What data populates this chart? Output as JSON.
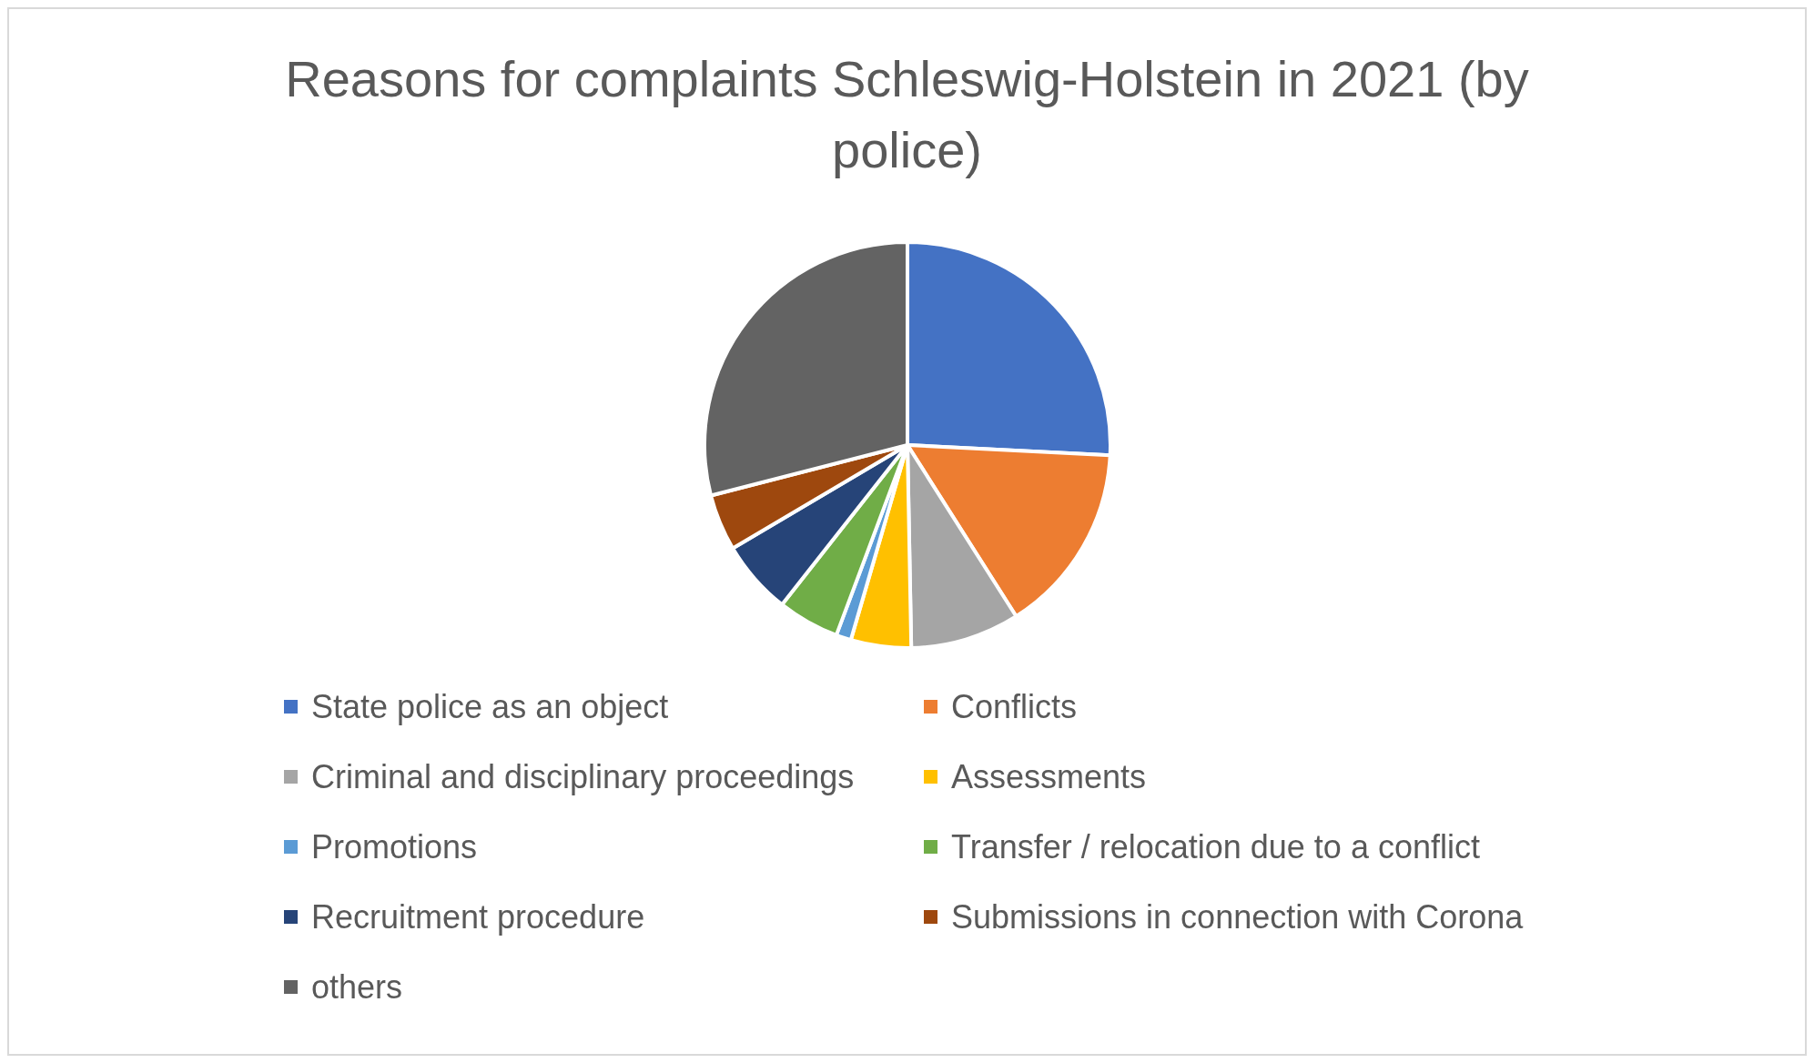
{
  "chart_data": {
    "type": "pie",
    "title": "Reasons for complaints Schleswig-Holstein in 2021 (by police)",
    "categories": [
      "State police as an object",
      "Conflicts",
      "Criminal and disciplinary proceedings",
      "Assessments",
      "Promotions",
      "Transfer / relocation due to a conflict",
      "Recruitment procedure",
      "Submissions in connection with Corona",
      "others"
    ],
    "values": [
      25.8,
      15.2,
      8.7,
      4.8,
      1.2,
      4.9,
      5.9,
      4.5,
      29.0
    ],
    "colors": [
      "#4472c4",
      "#ed7d31",
      "#a5a5a5",
      "#ffc000",
      "#5b9bd5",
      "#70ad47",
      "#264478",
      "#9e480e",
      "#636363"
    ],
    "legend": "bottom"
  }
}
